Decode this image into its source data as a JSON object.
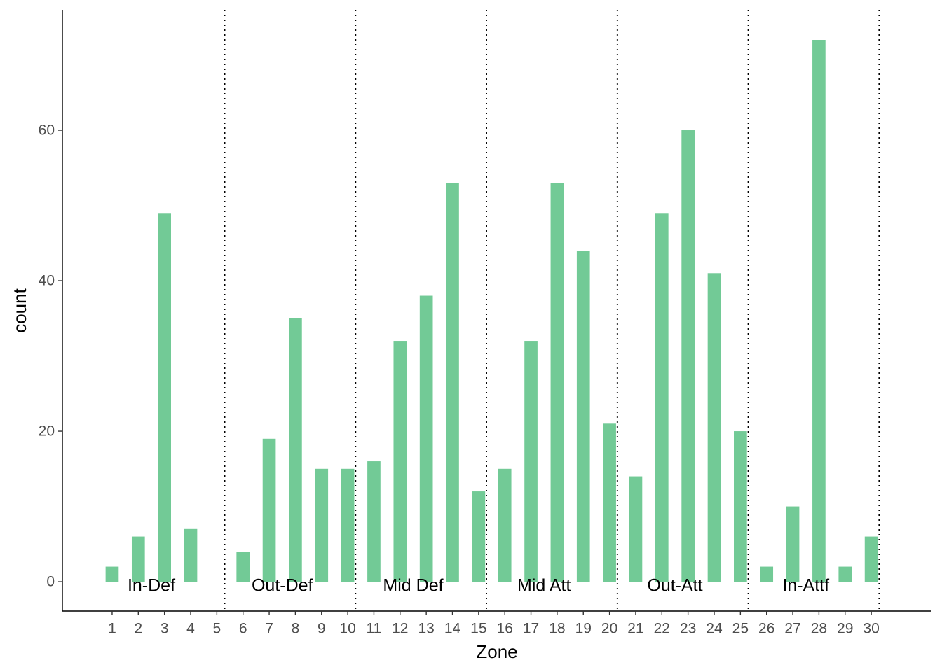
{
  "chart_data": {
    "type": "bar",
    "xlabel": "Zone",
    "ylabel": "count",
    "categories": [
      "1",
      "2",
      "3",
      "4",
      "5",
      "6",
      "7",
      "8",
      "9",
      "10",
      "11",
      "12",
      "13",
      "14",
      "15",
      "16",
      "17",
      "18",
      "19",
      "20",
      "21",
      "22",
      "23",
      "24",
      "25",
      "26",
      "27",
      "28",
      "29",
      "30"
    ],
    "values": [
      2,
      6,
      49,
      7,
      0,
      4,
      19,
      35,
      15,
      15,
      16,
      32,
      38,
      53,
      12,
      15,
      32,
      53,
      44,
      21,
      14,
      49,
      60,
      41,
      20,
      2,
      10,
      72,
      2,
      6
    ],
    "x_ticks": [
      1,
      2,
      3,
      4,
      5,
      6,
      7,
      8,
      9,
      10,
      11,
      12,
      13,
      14,
      15,
      16,
      17,
      18,
      19,
      20,
      21,
      22,
      23,
      24,
      25,
      26,
      27,
      28,
      29,
      30
    ],
    "y_ticks": [
      0,
      20,
      40,
      60
    ],
    "ylim": [
      -3.9,
      76
    ],
    "xlim": [
      -0.9,
      32.3
    ],
    "bar_color": "#72ca96",
    "separator_lines_x": [
      5.3,
      10.3,
      15.3,
      20.3,
      25.3,
      30.3
    ],
    "zone_labels": [
      {
        "text": "In-Def",
        "x": 2.5
      },
      {
        "text": "Out-Def",
        "x": 7.5
      },
      {
        "text": "Mid Def",
        "x": 12.5
      },
      {
        "text": "Mid Att",
        "x": 17.5
      },
      {
        "text": "Out-Att",
        "x": 22.5
      },
      {
        "text": "In-Attf",
        "x": 27.5
      }
    ],
    "zone_label_y": -0.5,
    "grid": false,
    "legend": "none"
  }
}
